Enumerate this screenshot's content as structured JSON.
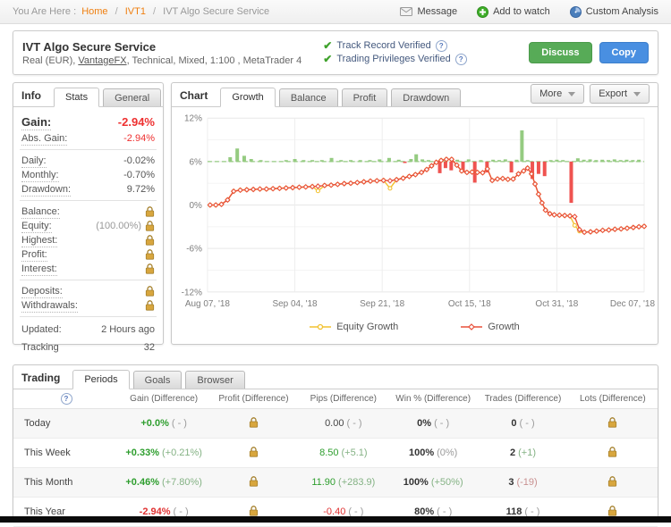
{
  "breadcrumb": {
    "prefix": "You Are Here :",
    "links": [
      "Home",
      "IVT1"
    ],
    "sep": "/",
    "current": "IVT Algo Secure Service"
  },
  "topbar_actions": {
    "message": "Message",
    "add_to_watch": "Add to watch",
    "custom_analysis": "Custom Analysis"
  },
  "header": {
    "title": "IVT Algo Secure Service",
    "subtitle_pre": "Real (EUR), ",
    "subtitle_link": "VantageFX",
    "subtitle_post": ", Technical, Mixed, 1:100 , MetaTrader 4",
    "verified": [
      "Track Record Verified",
      "Trading Privileges Verified"
    ],
    "discuss_label": "Discuss",
    "copy_label": "Copy"
  },
  "colors": {
    "accent_orange": "#ef7f10",
    "negative_red": "#ee3030",
    "positive_green": "#2e9e2e",
    "discuss_green": "#57ab57",
    "copy_blue": "#498fe1",
    "lock_gold": "#d8a63e"
  },
  "info_panel": {
    "title": "Info",
    "tabs": [
      "Stats",
      "General"
    ],
    "active_tab": "Stats",
    "rows": [
      {
        "label": "Gain:",
        "value": "-2.94%",
        "tone": "neg",
        "big": true
      },
      {
        "label": "Abs. Gain:",
        "value": "-2.94%",
        "tone": "neg"
      },
      {
        "divider": true
      },
      {
        "label": "Daily:",
        "value": "-0.02%"
      },
      {
        "label": "Monthly:",
        "value": "-0.70%"
      },
      {
        "label": "Drawdown:",
        "value": "9.72%"
      },
      {
        "divider": true
      },
      {
        "label": "Balance:",
        "lock": true
      },
      {
        "label": "Equity:",
        "value": "(100.00%)",
        "tone": "mut",
        "lock": true
      },
      {
        "label": "Highest:",
        "lock": true
      },
      {
        "label": "Profit:",
        "lock": true
      },
      {
        "label": "Interest:",
        "lock": true
      },
      {
        "divider": true
      },
      {
        "label": "Deposits:",
        "lock": true
      },
      {
        "label": "Withdrawals:",
        "lock": true
      },
      {
        "divider": true
      },
      {
        "label": "Updated:",
        "value": "2 Hours ago",
        "plain": true,
        "roomy": true
      },
      {
        "label": "Tracking",
        "value": "32",
        "plain": true,
        "roomy": true
      }
    ]
  },
  "chart_panel": {
    "title": "Chart",
    "tabs": [
      "Growth",
      "Balance",
      "Profit",
      "Drawdown"
    ],
    "active_tab": "Growth",
    "more_label": "More",
    "export_label": "Export"
  },
  "chart_data": {
    "type": "line",
    "title": "Growth",
    "ylabel": "%",
    "ylim": [
      -12,
      12
    ],
    "yticks": [
      12,
      6,
      0,
      -6,
      -12
    ],
    "grid": true,
    "legend_position": "bottom",
    "xlabels": [
      "Aug 07, '18",
      "Sep 04, '18",
      "Sep 21, '18",
      "Oct 15, '18",
      "Oct 31, '18",
      "Dec 07, '18"
    ],
    "baseline_pct": 6,
    "bars": {
      "green": "#95cb81",
      "red": "#ef5350",
      "points": [
        [
          0.052,
          0.6
        ],
        [
          0.068,
          1.8
        ],
        [
          0.084,
          0.8
        ],
        [
          0.1,
          0.35
        ],
        [
          0.122,
          0.15
        ],
        [
          0.18,
          0.2
        ],
        [
          0.2,
          0.35
        ],
        [
          0.22,
          0.2
        ],
        [
          0.24,
          0.15
        ],
        [
          0.262,
          0.2
        ],
        [
          0.284,
          0.5
        ],
        [
          0.306,
          0.2
        ],
        [
          0.328,
          0.15
        ],
        [
          0.35,
          0.2
        ],
        [
          0.372,
          0.15
        ],
        [
          0.394,
          0.3
        ],
        [
          0.416,
          0.5
        ],
        [
          0.438,
          0.25
        ],
        [
          0.452,
          -0.15
        ],
        [
          0.466,
          0.35
        ],
        [
          0.478,
          1.0
        ],
        [
          0.492,
          0.3
        ],
        [
          0.506,
          0.2
        ],
        [
          0.532,
          -1.6
        ],
        [
          0.545,
          -0.9
        ],
        [
          0.558,
          -1.2
        ],
        [
          0.572,
          0.25
        ],
        [
          0.585,
          -1.4
        ],
        [
          0.598,
          0.3
        ],
        [
          0.612,
          -2.9
        ],
        [
          0.626,
          0.2
        ],
        [
          0.64,
          -1.5
        ],
        [
          0.654,
          0.25
        ],
        [
          0.668,
          0.2
        ],
        [
          0.682,
          0.3
        ],
        [
          0.696,
          -1.5
        ],
        [
          0.708,
          0.25
        ],
        [
          0.72,
          4.3
        ],
        [
          0.733,
          0.2
        ],
        [
          0.744,
          -2.4
        ],
        [
          0.758,
          -1.7
        ],
        [
          0.772,
          -2.0
        ],
        [
          0.786,
          0.2
        ],
        [
          0.8,
          0.25
        ],
        [
          0.814,
          0.2
        ],
        [
          0.833,
          -5.7
        ],
        [
          0.848,
          0.45
        ],
        [
          0.862,
          0.25
        ],
        [
          0.876,
          0.3
        ],
        [
          0.89,
          0.2
        ],
        [
          0.904,
          0.25
        ],
        [
          0.918,
          0.2
        ],
        [
          0.932,
          0.3
        ],
        [
          0.946,
          0.2
        ],
        [
          0.96,
          0.25
        ],
        [
          0.974,
          0.2
        ],
        [
          0.988,
          0.25
        ]
      ]
    },
    "series": [
      {
        "name": "Equity Growth",
        "color": "#f2c230",
        "marker": "circle",
        "points": [
          [
            0.006,
            0.0
          ],
          [
            0.019,
            0.0
          ],
          [
            0.032,
            0.1
          ],
          [
            0.046,
            0.7
          ],
          [
            0.06,
            1.9
          ],
          [
            0.075,
            2.05
          ],
          [
            0.09,
            2.1
          ],
          [
            0.105,
            2.15
          ],
          [
            0.12,
            2.2
          ],
          [
            0.135,
            2.2
          ],
          [
            0.15,
            2.25
          ],
          [
            0.165,
            2.3
          ],
          [
            0.18,
            2.35
          ],
          [
            0.195,
            2.4
          ],
          [
            0.21,
            2.45
          ],
          [
            0.225,
            2.5
          ],
          [
            0.24,
            2.55
          ],
          [
            0.253,
            1.95
          ],
          [
            0.268,
            2.7
          ],
          [
            0.283,
            2.75
          ],
          [
            0.298,
            2.85
          ],
          [
            0.313,
            2.95
          ],
          [
            0.328,
            3.0
          ],
          [
            0.343,
            3.1
          ],
          [
            0.358,
            3.2
          ],
          [
            0.373,
            3.3
          ],
          [
            0.388,
            3.35
          ],
          [
            0.403,
            3.4
          ],
          [
            0.418,
            2.3
          ],
          [
            0.433,
            3.5
          ],
          [
            0.448,
            3.7
          ],
          [
            0.462,
            3.95
          ],
          [
            0.476,
            4.2
          ],
          [
            0.49,
            4.5
          ],
          [
            0.502,
            4.9
          ],
          [
            0.513,
            5.4
          ],
          [
            0.524,
            5.9
          ],
          [
            0.535,
            6.15
          ],
          [
            0.547,
            6.3
          ],
          [
            0.559,
            6.3
          ],
          [
            0.571,
            5.5
          ],
          [
            0.582,
            4.7
          ],
          [
            0.594,
            4.5
          ],
          [
            0.606,
            4.55
          ],
          [
            0.618,
            4.5
          ],
          [
            0.63,
            4.45
          ],
          [
            0.641,
            5.0
          ],
          [
            0.652,
            3.4
          ],
          [
            0.664,
            3.6
          ],
          [
            0.676,
            3.65
          ],
          [
            0.688,
            3.55
          ],
          [
            0.7,
            3.6
          ],
          [
            0.712,
            4.3
          ],
          [
            0.724,
            4.7
          ],
          [
            0.733,
            5.1
          ],
          [
            0.742,
            4.3
          ],
          [
            0.75,
            2.9
          ],
          [
            0.758,
            1.5
          ],
          [
            0.766,
            0.3
          ],
          [
            0.774,
            -0.7
          ],
          [
            0.784,
            -1.2
          ],
          [
            0.794,
            -1.35
          ],
          [
            0.806,
            -1.4
          ],
          [
            0.818,
            -1.45
          ],
          [
            0.83,
            -1.5
          ],
          [
            0.841,
            -2.8
          ],
          [
            0.852,
            -3.6
          ],
          [
            0.863,
            -3.75
          ],
          [
            0.877,
            -3.7
          ],
          [
            0.891,
            -3.6
          ],
          [
            0.905,
            -3.5
          ],
          [
            0.919,
            -3.45
          ],
          [
            0.933,
            -3.35
          ],
          [
            0.947,
            -3.3
          ],
          [
            0.961,
            -3.2
          ],
          [
            0.975,
            -3.1
          ],
          [
            0.988,
            -3.0
          ],
          [
            1.0,
            -2.94
          ]
        ]
      },
      {
        "name": "Growth",
        "color": "#e8503a",
        "marker": "diamond",
        "points": [
          [
            0.006,
            0.0
          ],
          [
            0.019,
            0.0
          ],
          [
            0.032,
            0.1
          ],
          [
            0.046,
            0.7
          ],
          [
            0.06,
            1.9
          ],
          [
            0.075,
            2.05
          ],
          [
            0.09,
            2.1
          ],
          [
            0.105,
            2.15
          ],
          [
            0.12,
            2.2
          ],
          [
            0.135,
            2.2
          ],
          [
            0.15,
            2.25
          ],
          [
            0.165,
            2.3
          ],
          [
            0.18,
            2.35
          ],
          [
            0.195,
            2.4
          ],
          [
            0.21,
            2.45
          ],
          [
            0.225,
            2.5
          ],
          [
            0.24,
            2.55
          ],
          [
            0.253,
            2.6
          ],
          [
            0.268,
            2.7
          ],
          [
            0.283,
            2.75
          ],
          [
            0.298,
            2.85
          ],
          [
            0.313,
            2.95
          ],
          [
            0.328,
            3.0
          ],
          [
            0.343,
            3.1
          ],
          [
            0.358,
            3.2
          ],
          [
            0.373,
            3.3
          ],
          [
            0.388,
            3.35
          ],
          [
            0.403,
            3.4
          ],
          [
            0.418,
            3.35
          ],
          [
            0.433,
            3.5
          ],
          [
            0.448,
            3.7
          ],
          [
            0.462,
            3.95
          ],
          [
            0.476,
            4.2
          ],
          [
            0.49,
            4.5
          ],
          [
            0.502,
            4.9
          ],
          [
            0.513,
            5.4
          ],
          [
            0.524,
            5.9
          ],
          [
            0.535,
            6.15
          ],
          [
            0.547,
            6.3
          ],
          [
            0.559,
            6.3
          ],
          [
            0.571,
            5.5
          ],
          [
            0.582,
            4.7
          ],
          [
            0.594,
            4.5
          ],
          [
            0.606,
            4.55
          ],
          [
            0.618,
            4.5
          ],
          [
            0.63,
            4.45
          ],
          [
            0.641,
            5.0
          ],
          [
            0.652,
            3.4
          ],
          [
            0.664,
            3.6
          ],
          [
            0.676,
            3.65
          ],
          [
            0.688,
            3.55
          ],
          [
            0.7,
            3.6
          ],
          [
            0.712,
            4.3
          ],
          [
            0.724,
            4.7
          ],
          [
            0.733,
            5.1
          ],
          [
            0.742,
            4.3
          ],
          [
            0.75,
            2.9
          ],
          [
            0.758,
            1.5
          ],
          [
            0.766,
            0.3
          ],
          [
            0.774,
            -0.7
          ],
          [
            0.784,
            -1.2
          ],
          [
            0.794,
            -1.35
          ],
          [
            0.806,
            -1.4
          ],
          [
            0.818,
            -1.45
          ],
          [
            0.83,
            -1.5
          ],
          [
            0.841,
            -1.6
          ],
          [
            0.852,
            -3.4
          ],
          [
            0.863,
            -3.75
          ],
          [
            0.877,
            -3.7
          ],
          [
            0.891,
            -3.6
          ],
          [
            0.905,
            -3.5
          ],
          [
            0.919,
            -3.45
          ],
          [
            0.933,
            -3.35
          ],
          [
            0.947,
            -3.3
          ],
          [
            0.961,
            -3.2
          ],
          [
            0.975,
            -3.1
          ],
          [
            0.988,
            -3.0
          ],
          [
            1.0,
            -2.94
          ]
        ]
      }
    ]
  },
  "trading_panel": {
    "title": "Trading",
    "tabs": [
      "Periods",
      "Goals",
      "Browser"
    ],
    "active_tab": "Periods",
    "columns": [
      "Gain (Difference)",
      "Profit (Difference)",
      "Pips (Difference)",
      "Win % (Difference)",
      "Trades (Difference)",
      "Lots (Difference)"
    ],
    "rows": [
      {
        "period": "Today",
        "gain": {
          "v": "+0.0%",
          "t": "pos",
          "b": true,
          "d": "( - )",
          "dt": "mut"
        },
        "profit": "lock",
        "pips": {
          "v": "0.00",
          "t": "plain",
          "b": false,
          "d": "( - )",
          "dt": "mut"
        },
        "win": {
          "v": "0%",
          "t": "bold",
          "b": true,
          "d": "( - )",
          "dt": "mut"
        },
        "trades": {
          "v": "0",
          "t": "bold",
          "b": true,
          "d": "( - )",
          "dt": "mut"
        },
        "lots": "lock"
      },
      {
        "period": "This Week",
        "gain": {
          "v": "+0.33%",
          "t": "pos",
          "b": true,
          "d": "(+0.21%)",
          "dt": "posmut"
        },
        "profit": "lock",
        "pips": {
          "v": "8.50",
          "t": "pos",
          "b": false,
          "d": "(+5.1)",
          "dt": "posmut"
        },
        "win": {
          "v": "100%",
          "t": "bold",
          "b": true,
          "d": "(0%)",
          "dt": "mut"
        },
        "trades": {
          "v": "2",
          "t": "bold",
          "b": true,
          "d": "(+1)",
          "dt": "posmut"
        },
        "lots": "lock"
      },
      {
        "period": "This Month",
        "gain": {
          "v": "+0.46%",
          "t": "pos",
          "b": true,
          "d": "(+7.80%)",
          "dt": "posmut"
        },
        "profit": "lock",
        "pips": {
          "v": "11.90",
          "t": "pos",
          "b": false,
          "d": "(+283.9)",
          "dt": "posmut"
        },
        "win": {
          "v": "100%",
          "t": "bold",
          "b": true,
          "d": "(+50%)",
          "dt": "posmut"
        },
        "trades": {
          "v": "3",
          "t": "bold",
          "b": true,
          "d": "(-19)",
          "dt": "negmut"
        },
        "lots": "lock"
      },
      {
        "period": "This Year",
        "gain": {
          "v": "-2.94%",
          "t": "neg",
          "b": true,
          "d": "( - )",
          "dt": "mut"
        },
        "profit": "lock",
        "pips": {
          "v": "-0.40",
          "t": "neg",
          "b": false,
          "d": "( - )",
          "dt": "mut"
        },
        "win": {
          "v": "80%",
          "t": "bold",
          "b": true,
          "d": "( - )",
          "dt": "mut"
        },
        "trades": {
          "v": "118",
          "t": "bold",
          "b": true,
          "d": "( - )",
          "dt": "mut"
        },
        "lots": "lock"
      }
    ]
  }
}
